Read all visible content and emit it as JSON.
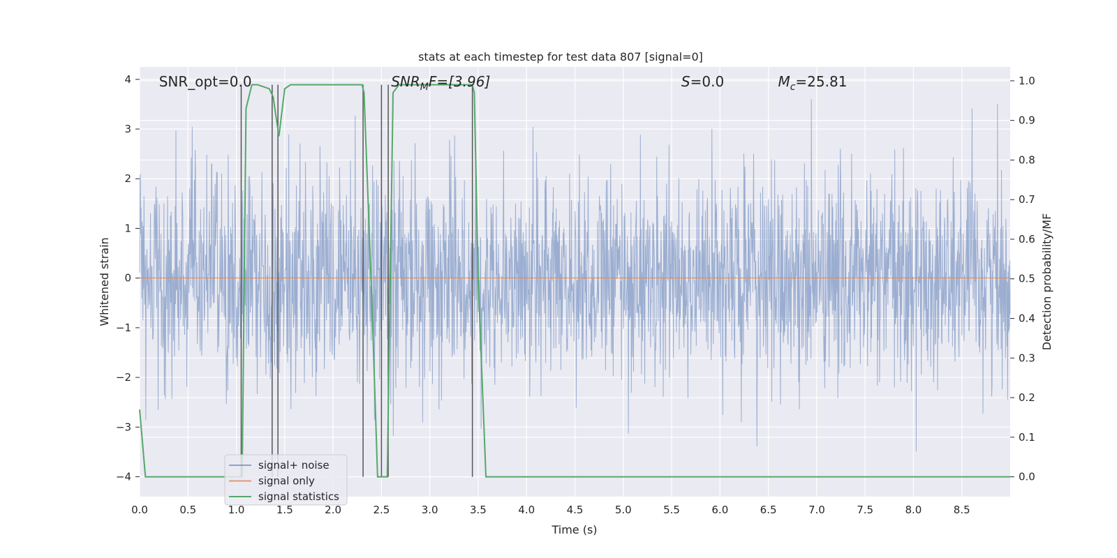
{
  "chart_data": {
    "type": "line",
    "title": "stats at each timestep for test data 807 [signal=0]",
    "xlabel": "Time (s)",
    "ylabel_left": "Whitened strain",
    "ylabel_right": "Detection probability/MF",
    "xlim": [
      0,
      9.0
    ],
    "ylim_left": [
      -4.4,
      4.25
    ],
    "ylim_right": [
      -0.05,
      1.035
    ],
    "x_ticks": [
      "0.0",
      "0.5",
      "1.0",
      "1.5",
      "2.0",
      "2.5",
      "3.0",
      "3.5",
      "4.0",
      "4.5",
      "5.0",
      "5.5",
      "6.0",
      "6.5",
      "7.0",
      "7.5",
      "8.0",
      "8.5"
    ],
    "y_ticks_left": [
      "4",
      "3",
      "2",
      "1",
      "0",
      "−1",
      "−2",
      "−3",
      "−4"
    ],
    "y_ticks_right": [
      "1.0",
      "0.9",
      "0.8",
      "0.7",
      "0.6",
      "0.5",
      "0.4",
      "0.3",
      "0.2",
      "0.1",
      "0.0"
    ],
    "grid": true,
    "background": "#eaeaf2",
    "annotations": [
      {
        "label": "SNR_opt=0.0",
        "x": 0.2
      },
      {
        "label": "SNR",
        "sub": "M",
        "suffix": "F=[3.96]",
        "x": 2.6
      },
      {
        "label": "S",
        "suffix": "=0.0",
        "x": 5.6
      },
      {
        "label": "M",
        "sub": "c",
        "suffix": "=25.81",
        "x": 6.6
      }
    ],
    "legend": {
      "position": "lower-left",
      "entries": [
        {
          "name": "signal+ noise",
          "color": "#4c72b0"
        },
        {
          "name": "signal only",
          "color": "#dd8452"
        },
        {
          "name": "signal statistics",
          "color": "#55a868"
        }
      ]
    },
    "series": [
      {
        "name": "signal+ noise",
        "axis": "left",
        "color": "#4c72b0",
        "alpha": 0.5,
        "distribution": "white noise, sigma ~1, range about -4.2 to 3.6",
        "n_points": 2400
      },
      {
        "name": "signal only",
        "axis": "left",
        "color": "#dd8452",
        "constant": 0
      },
      {
        "name": "signal statistics",
        "axis": "right",
        "color": "#55a868",
        "x": [
          0.0,
          0.06,
          0.12,
          0.5,
          1.0,
          1.04,
          1.06,
          1.1,
          1.16,
          1.22,
          1.34,
          1.38,
          1.44,
          1.5,
          1.56,
          2.0,
          2.3,
          2.32,
          2.4,
          2.46,
          2.52,
          2.56,
          2.62,
          2.68,
          3.0,
          3.44,
          3.46,
          3.5,
          3.58,
          4.0,
          9.0
        ],
        "values": [
          0.17,
          0.0,
          0.0,
          0.0,
          0.0,
          0.0,
          0.0,
          0.93,
          0.99,
          0.99,
          0.98,
          0.96,
          0.86,
          0.98,
          0.99,
          0.99,
          0.99,
          0.97,
          0.45,
          0.0,
          0.0,
          0.0,
          0.97,
          0.99,
          0.99,
          0.99,
          0.97,
          0.5,
          0.0,
          0.0,
          0.0
        ]
      }
    ],
    "vertical_markers": [
      1.05,
      1.37,
      1.43,
      2.31,
      2.5,
      2.57,
      3.44
    ]
  }
}
